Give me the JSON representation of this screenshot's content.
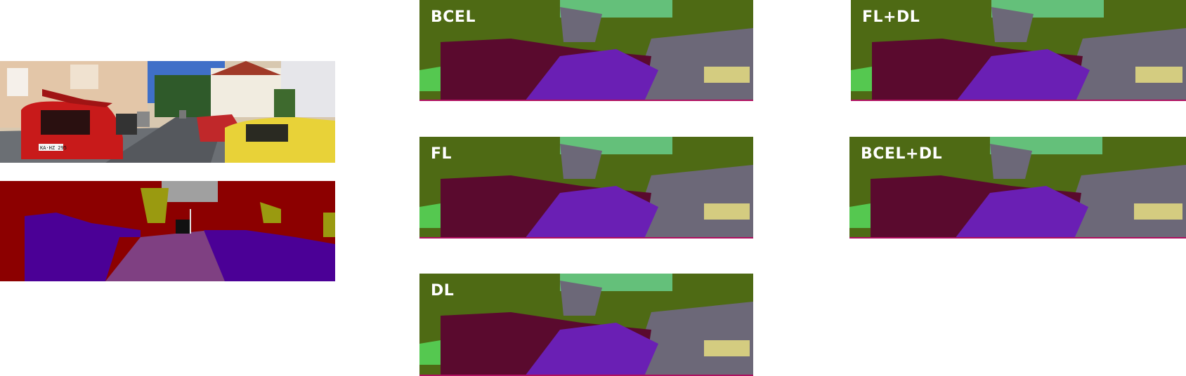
{
  "figure": {
    "input_photo": {
      "plate_text": "KA·HZ 295"
    },
    "panels": [
      {
        "id": "bcel",
        "label": "BCEL"
      },
      {
        "id": "fl",
        "label": "FL"
      },
      {
        "id": "dl",
        "label": "DL"
      },
      {
        "id": "fldl",
        "label": "FL+DL"
      },
      {
        "id": "bceldl",
        "label": "BCEL+DL"
      }
    ],
    "class_colors": {
      "vegetation": "#4e6a14",
      "sky": "#64c07a",
      "building": "#6c6878",
      "car": "#5a0a2e",
      "road": "#6a1fb4",
      "sidewalk": "#d4cc80",
      "terrain": "#55c850",
      "gt_building": "#8c0000",
      "gt_car": "#4b0096",
      "gt_road": "#7f4082",
      "gt_vegetation": "#9a9a10",
      "gt_sky": "#a0a0a0"
    }
  }
}
